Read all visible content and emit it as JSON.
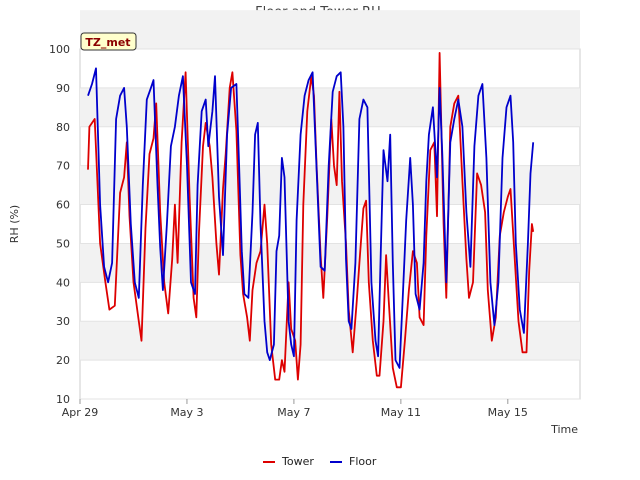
{
  "chart_data": {
    "type": "line",
    "title": "Floor and Tower RH",
    "xlabel": "Time",
    "ylabel": "RH (%)",
    "ylim": [
      10,
      100
    ],
    "xlim": [
      0,
      18.7
    ],
    "yticks": [
      10,
      20,
      30,
      40,
      50,
      60,
      70,
      80,
      90,
      100
    ],
    "xticks": [
      {
        "day": 0,
        "label": "Apr 29"
      },
      {
        "day": 4,
        "label": "May 3"
      },
      {
        "day": 8,
        "label": "May 7"
      },
      {
        "day": 12,
        "label": "May 11"
      },
      {
        "day": 16,
        "label": "May 15"
      }
    ],
    "station_badge": "TZ_met",
    "grid": "horizontal alternating bands",
    "legend_position": "bottom-center",
    "series": [
      {
        "name": "Tower",
        "color": "#dd0000",
        "points": [
          [
            0.3,
            69
          ],
          [
            0.35,
            80
          ],
          [
            0.55,
            82
          ],
          [
            0.75,
            50
          ],
          [
            0.95,
            40
          ],
          [
            1.1,
            33
          ],
          [
            1.3,
            34
          ],
          [
            1.5,
            63
          ],
          [
            1.65,
            67
          ],
          [
            1.75,
            76
          ],
          [
            1.85,
            57
          ],
          [
            2.0,
            40
          ],
          [
            2.2,
            30
          ],
          [
            2.3,
            25
          ],
          [
            2.45,
            54
          ],
          [
            2.6,
            73
          ],
          [
            2.75,
            77
          ],
          [
            2.85,
            86
          ],
          [
            3.0,
            58
          ],
          [
            3.15,
            40
          ],
          [
            3.3,
            32
          ],
          [
            3.45,
            46
          ],
          [
            3.55,
            60
          ],
          [
            3.65,
            45
          ],
          [
            3.8,
            76
          ],
          [
            3.95,
            94
          ],
          [
            4.1,
            62
          ],
          [
            4.25,
            36
          ],
          [
            4.35,
            31
          ],
          [
            4.45,
            53
          ],
          [
            4.6,
            75
          ],
          [
            4.7,
            81
          ],
          [
            4.85,
            75
          ],
          [
            4.95,
            67
          ],
          [
            5.1,
            50
          ],
          [
            5.2,
            42
          ],
          [
            5.35,
            64
          ],
          [
            5.45,
            73
          ],
          [
            5.6,
            90
          ],
          [
            5.7,
            94
          ],
          [
            5.85,
            79
          ],
          [
            6.0,
            47
          ],
          [
            6.1,
            37
          ],
          [
            6.25,
            31
          ],
          [
            6.35,
            25
          ],
          [
            6.45,
            38
          ],
          [
            6.6,
            45
          ],
          [
            6.75,
            48
          ],
          [
            6.9,
            60
          ],
          [
            7.0,
            50
          ],
          [
            7.15,
            24
          ],
          [
            7.3,
            15
          ],
          [
            7.45,
            15
          ],
          [
            7.55,
            20
          ],
          [
            7.65,
            17
          ],
          [
            7.8,
            40
          ],
          [
            7.9,
            28
          ],
          [
            8.05,
            25
          ],
          [
            8.15,
            15
          ],
          [
            8.25,
            24
          ],
          [
            8.35,
            60
          ],
          [
            8.5,
            84
          ],
          [
            8.65,
            93
          ],
          [
            8.75,
            88
          ],
          [
            8.85,
            70
          ],
          [
            9.0,
            47
          ],
          [
            9.1,
            36
          ],
          [
            9.25,
            57
          ],
          [
            9.4,
            82
          ],
          [
            9.5,
            70
          ],
          [
            9.6,
            65
          ],
          [
            9.7,
            89
          ],
          [
            9.8,
            66
          ],
          [
            9.95,
            50
          ],
          [
            10.05,
            33
          ],
          [
            10.2,
            22
          ],
          [
            10.35,
            35
          ],
          [
            10.45,
            45
          ],
          [
            10.6,
            59
          ],
          [
            10.7,
            61
          ],
          [
            10.8,
            40
          ],
          [
            10.95,
            25
          ],
          [
            11.1,
            16
          ],
          [
            11.2,
            16
          ],
          [
            11.35,
            30
          ],
          [
            11.45,
            47
          ],
          [
            11.55,
            35
          ],
          [
            11.7,
            18
          ],
          [
            11.85,
            13
          ],
          [
            12.0,
            13
          ],
          [
            12.15,
            25
          ],
          [
            12.3,
            38
          ],
          [
            12.45,
            48
          ],
          [
            12.6,
            45
          ],
          [
            12.7,
            31
          ],
          [
            12.85,
            29
          ],
          [
            12.95,
            52
          ],
          [
            13.1,
            74
          ],
          [
            13.25,
            76
          ],
          [
            13.35,
            57
          ],
          [
            13.45,
            99
          ],
          [
            13.6,
            55
          ],
          [
            13.7,
            36
          ],
          [
            13.85,
            80
          ],
          [
            14.0,
            86
          ],
          [
            14.15,
            88
          ],
          [
            14.3,
            66
          ],
          [
            14.45,
            46
          ],
          [
            14.55,
            36
          ],
          [
            14.7,
            40
          ],
          [
            14.85,
            68
          ],
          [
            15.0,
            65
          ],
          [
            15.15,
            58
          ],
          [
            15.25,
            38
          ],
          [
            15.4,
            25
          ],
          [
            15.55,
            31
          ],
          [
            15.7,
            52
          ],
          [
            15.85,
            58
          ],
          [
            16.0,
            62
          ],
          [
            16.1,
            64
          ],
          [
            16.25,
            47
          ],
          [
            16.4,
            30
          ],
          [
            16.55,
            22
          ],
          [
            16.7,
            22
          ],
          [
            16.8,
            43
          ],
          [
            16.9,
            55
          ],
          [
            16.95,
            53
          ]
        ]
      },
      {
        "name": "Floor",
        "color": "#0000cc",
        "points": [
          [
            0.3,
            88
          ],
          [
            0.45,
            91
          ],
          [
            0.6,
            95
          ],
          [
            0.75,
            60
          ],
          [
            0.9,
            44
          ],
          [
            1.05,
            40
          ],
          [
            1.2,
            45
          ],
          [
            1.35,
            82
          ],
          [
            1.5,
            88
          ],
          [
            1.65,
            90
          ],
          [
            1.75,
            80
          ],
          [
            1.9,
            55
          ],
          [
            2.05,
            40
          ],
          [
            2.2,
            36
          ],
          [
            2.35,
            65
          ],
          [
            2.5,
            87
          ],
          [
            2.65,
            90
          ],
          [
            2.75,
            92
          ],
          [
            2.9,
            65
          ],
          [
            3.0,
            49
          ],
          [
            3.1,
            38
          ],
          [
            3.25,
            55
          ],
          [
            3.4,
            75
          ],
          [
            3.55,
            80
          ],
          [
            3.7,
            88
          ],
          [
            3.85,
            93
          ],
          [
            4.0,
            70
          ],
          [
            4.15,
            40
          ],
          [
            4.3,
            37
          ],
          [
            4.4,
            65
          ],
          [
            4.55,
            84
          ],
          [
            4.7,
            87
          ],
          [
            4.8,
            75
          ],
          [
            4.95,
            84
          ],
          [
            5.05,
            93
          ],
          [
            5.2,
            62
          ],
          [
            5.35,
            47
          ],
          [
            5.5,
            78
          ],
          [
            5.65,
            90
          ],
          [
            5.85,
            91
          ],
          [
            5.95,
            70
          ],
          [
            6.05,
            48
          ],
          [
            6.15,
            37
          ],
          [
            6.3,
            36
          ],
          [
            6.45,
            58
          ],
          [
            6.55,
            78
          ],
          [
            6.65,
            81
          ],
          [
            6.75,
            55
          ],
          [
            6.9,
            30
          ],
          [
            7.0,
            22
          ],
          [
            7.1,
            20
          ],
          [
            7.25,
            24
          ],
          [
            7.35,
            48
          ],
          [
            7.45,
            52
          ],
          [
            7.55,
            72
          ],
          [
            7.65,
            67
          ],
          [
            7.8,
            30
          ],
          [
            7.9,
            24
          ],
          [
            8.0,
            21
          ],
          [
            8.1,
            56
          ],
          [
            8.25,
            78
          ],
          [
            8.4,
            88
          ],
          [
            8.55,
            92
          ],
          [
            8.7,
            94
          ],
          [
            8.85,
            69
          ],
          [
            9.0,
            44
          ],
          [
            9.15,
            43
          ],
          [
            9.3,
            70
          ],
          [
            9.45,
            89
          ],
          [
            9.6,
            93
          ],
          [
            9.75,
            94
          ],
          [
            9.85,
            80
          ],
          [
            9.95,
            46
          ],
          [
            10.05,
            30
          ],
          [
            10.15,
            28
          ],
          [
            10.3,
            45
          ],
          [
            10.45,
            82
          ],
          [
            10.6,
            87
          ],
          [
            10.75,
            85
          ],
          [
            10.9,
            40
          ],
          [
            11.05,
            25
          ],
          [
            11.15,
            21
          ],
          [
            11.25,
            48
          ],
          [
            11.35,
            74
          ],
          [
            11.5,
            66
          ],
          [
            11.6,
            78
          ],
          [
            11.7,
            45
          ],
          [
            11.8,
            20
          ],
          [
            11.95,
            18
          ],
          [
            12.05,
            33
          ],
          [
            12.2,
            56
          ],
          [
            12.35,
            72
          ],
          [
            12.45,
            60
          ],
          [
            12.55,
            37
          ],
          [
            12.7,
            33
          ],
          [
            12.85,
            45
          ],
          [
            12.95,
            66
          ],
          [
            13.05,
            78
          ],
          [
            13.2,
            85
          ],
          [
            13.35,
            67
          ],
          [
            13.45,
            90
          ],
          [
            13.55,
            73
          ],
          [
            13.7,
            40
          ],
          [
            13.85,
            76
          ],
          [
            14.0,
            82
          ],
          [
            14.15,
            87
          ],
          [
            14.3,
            80
          ],
          [
            14.45,
            58
          ],
          [
            14.6,
            44
          ],
          [
            14.75,
            75
          ],
          [
            14.9,
            88
          ],
          [
            15.05,
            91
          ],
          [
            15.2,
            72
          ],
          [
            15.35,
            40
          ],
          [
            15.5,
            29
          ],
          [
            15.65,
            40
          ],
          [
            15.8,
            72
          ],
          [
            15.95,
            85
          ],
          [
            16.1,
            88
          ],
          [
            16.2,
            76
          ],
          [
            16.3,
            50
          ],
          [
            16.45,
            33
          ],
          [
            16.6,
            27
          ],
          [
            16.75,
            50
          ],
          [
            16.85,
            68
          ],
          [
            16.95,
            76
          ]
        ]
      }
    ]
  }
}
